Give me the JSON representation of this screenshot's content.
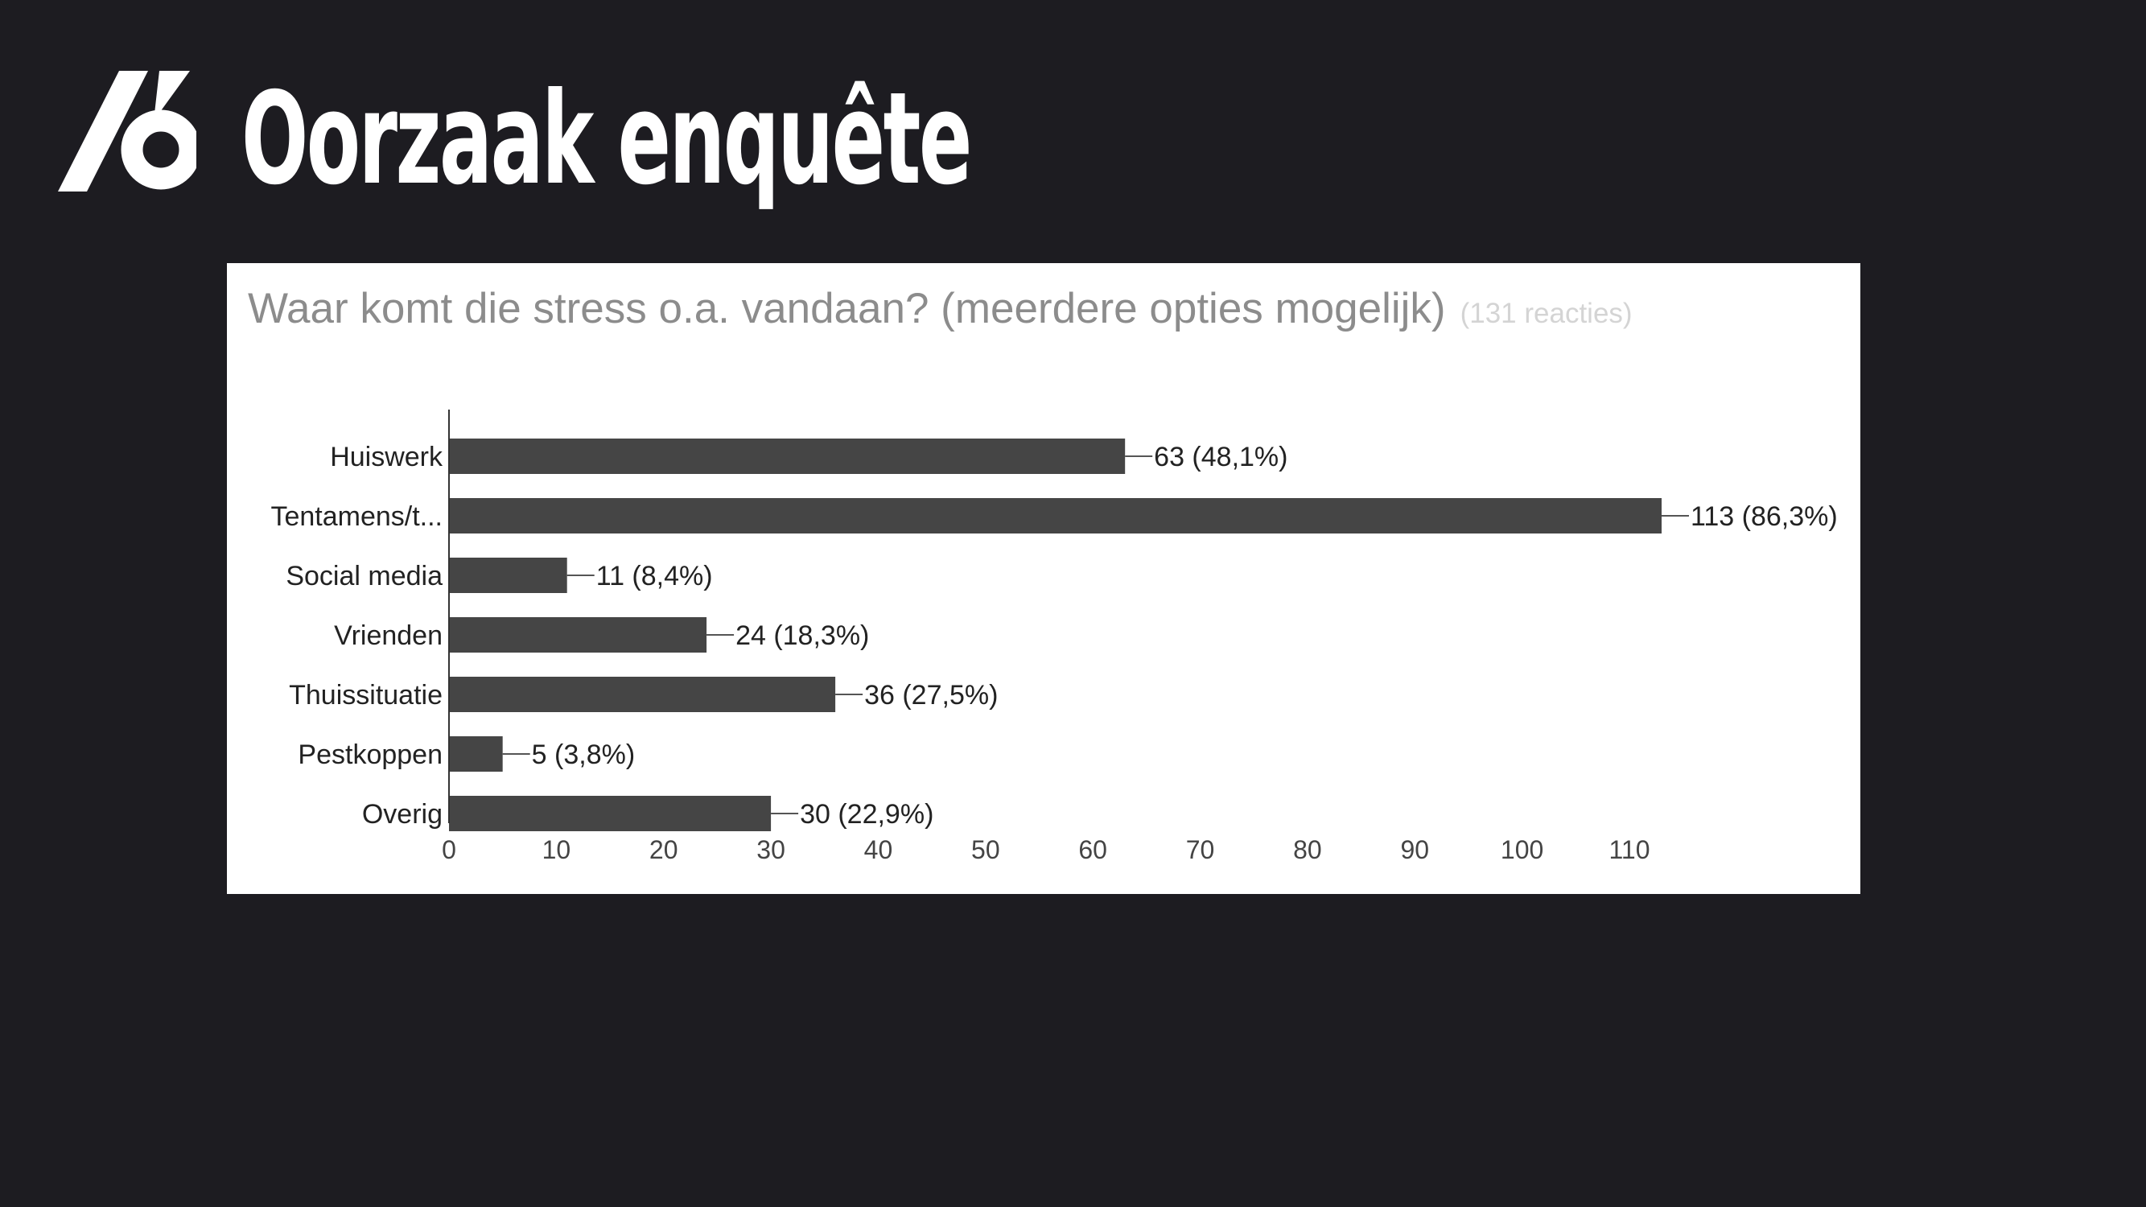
{
  "slide": {
    "title": "Oorzaak enquête",
    "logo_name": "slash-six-logo"
  },
  "colors": {
    "background": "#1d1c21",
    "card": "#ffffff",
    "bar": "#454545",
    "title": "#ffffff",
    "question": "#8c8c8c",
    "response_count": "#d4d4d4"
  },
  "chart_data": {
    "type": "bar",
    "orientation": "horizontal",
    "title": "Waar komt die stress o.a. vandaan? (meerdere opties mogelijk)",
    "subtitle": "(131 reacties)",
    "categories": [
      "Huiswerk",
      "Tentamens/t...",
      "Social media",
      "Vrienden",
      "Thuissituatie",
      "Pestkoppen",
      "Overig"
    ],
    "values": [
      63,
      113,
      11,
      24,
      36,
      5,
      30
    ],
    "data_labels": [
      "63 (48,1%)",
      "113 (86,3%)",
      "11 (8,4%)",
      "24 (18,3%)",
      "36 (27,5%)",
      "5 (3,8%)",
      "30 (22,9%)"
    ],
    "xticks": [
      0,
      10,
      20,
      30,
      40,
      50,
      60,
      70,
      80,
      90,
      100,
      110
    ],
    "xlim": [
      0,
      113
    ],
    "xlabel": "",
    "ylabel": "",
    "grid": false,
    "legend": "none"
  }
}
